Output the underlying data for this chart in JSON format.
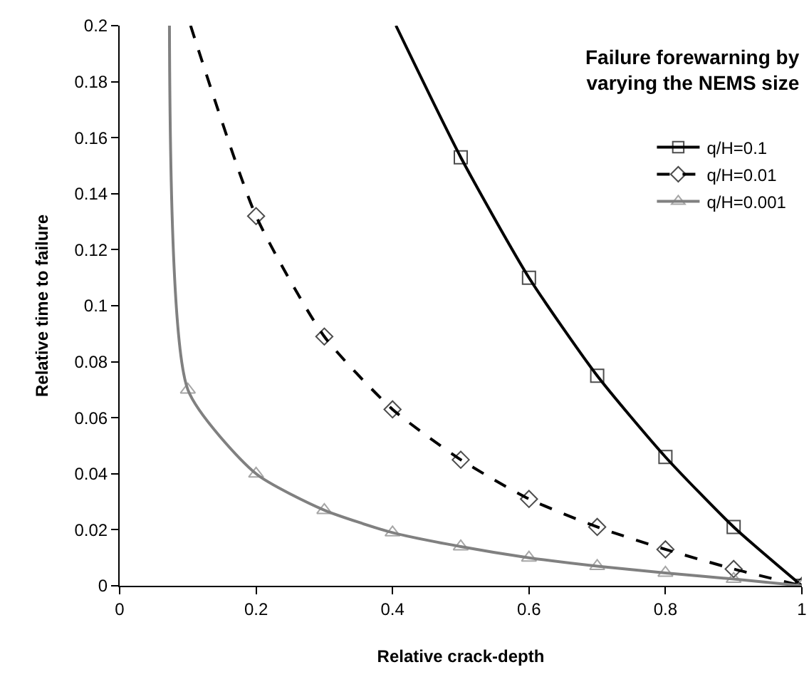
{
  "chart_data": {
    "type": "line",
    "title": "Failure forewarning by\nvarying the NEMS size",
    "xlabel": "Relative crack-depth",
    "ylabel": "Relative time to failure",
    "xlim": [
      0,
      1
    ],
    "xticks": [
      0,
      0.2,
      0.4,
      0.6,
      0.8,
      1
    ],
    "ylim": [
      0,
      0.2
    ],
    "yticks": [
      0,
      0.02,
      0.04,
      0.06,
      0.08,
      0.1,
      0.12,
      0.14,
      0.16,
      0.18,
      0.2
    ],
    "legend": "top right",
    "series": [
      {
        "name": "q/H=0.1",
        "color": "#000000",
        "marker": "square",
        "line_style": "solid",
        "x": [
          0.405,
          0.5,
          0.6,
          0.7,
          0.8,
          0.9,
          1
        ],
        "values": [
          0.2,
          0.153,
          0.11,
          0.075,
          0.046,
          0.021,
          0
        ]
      },
      {
        "name": "q/H=0.01",
        "color": "#000000",
        "marker": "diamond",
        "line_style": "dashed",
        "x": [
          0.104,
          0.2,
          0.3,
          0.4,
          0.5,
          0.6,
          0.7,
          0.8,
          0.9,
          1
        ],
        "values": [
          0.2,
          0.132,
          0.089,
          0.063,
          0.045,
          0.031,
          0.021,
          0.013,
          0.006,
          0
        ]
      },
      {
        "name": "q/H=0.001",
        "color": "#808080",
        "marker": "triangle",
        "line_style": "solid",
        "x": [
          0.073,
          0.1,
          0.2,
          0.3,
          0.4,
          0.5,
          0.6,
          0.7,
          0.8,
          0.9,
          1
        ],
        "values": [
          0.2,
          0.07,
          0.04,
          0.027,
          0.019,
          0.014,
          0.01,
          0.007,
          0.0046,
          0.0024,
          0
        ]
      }
    ]
  }
}
